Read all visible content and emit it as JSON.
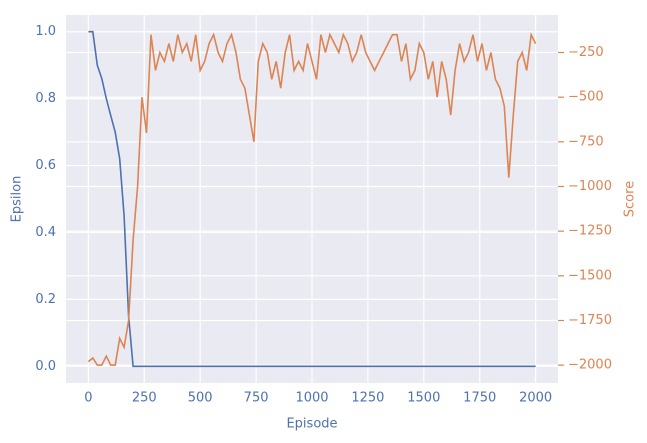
{
  "chart_data": {
    "type": "line",
    "x": [
      0,
      20,
      40,
      60,
      80,
      100,
      120,
      140,
      160,
      180,
      200,
      220,
      240,
      260,
      280,
      300,
      320,
      340,
      360,
      380,
      400,
      420,
      440,
      460,
      480,
      500,
      520,
      540,
      560,
      580,
      600,
      620,
      640,
      660,
      680,
      700,
      720,
      740,
      760,
      780,
      800,
      820,
      840,
      860,
      880,
      900,
      920,
      940,
      960,
      980,
      1000,
      1020,
      1040,
      1060,
      1080,
      1100,
      1120,
      1140,
      1160,
      1180,
      1200,
      1220,
      1240,
      1260,
      1280,
      1300,
      1320,
      1340,
      1360,
      1380,
      1400,
      1420,
      1440,
      1460,
      1480,
      1500,
      1520,
      1540,
      1560,
      1580,
      1600,
      1620,
      1640,
      1660,
      1680,
      1700,
      1720,
      1740,
      1760,
      1780,
      1800,
      1820,
      1840,
      1860,
      1880,
      1900,
      1920,
      1940,
      1960,
      1980,
      2000
    ],
    "series": [
      {
        "name": "Epsilon",
        "color": "#4c72b0",
        "axis": "y",
        "values": [
          1.0,
          1.0,
          0.9,
          0.86,
          0.8,
          0.75,
          0.7,
          0.62,
          0.45,
          0.15,
          0,
          0,
          0,
          0,
          0,
          0,
          0,
          0,
          0,
          0,
          0,
          0,
          0,
          0,
          0,
          0,
          0,
          0,
          0,
          0,
          0,
          0,
          0,
          0,
          0,
          0,
          0,
          0,
          0,
          0,
          0,
          0,
          0,
          0,
          0,
          0,
          0,
          0,
          0,
          0,
          0,
          0,
          0,
          0,
          0,
          0,
          0,
          0,
          0,
          0,
          0,
          0,
          0,
          0,
          0,
          0,
          0,
          0,
          0,
          0,
          0,
          0,
          0,
          0,
          0,
          0,
          0,
          0,
          0,
          0,
          0,
          0,
          0,
          0,
          0,
          0,
          0,
          0,
          0,
          0,
          0,
          0,
          0,
          0,
          0,
          0,
          0,
          0,
          0,
          0,
          0
        ]
      },
      {
        "name": "Score",
        "color": "#dd8452",
        "axis": "y2",
        "values": [
          -1980,
          -1960,
          -2000,
          -2000,
          -1950,
          -2000,
          -2000,
          -1850,
          -1900,
          -1750,
          -1300,
          -1000,
          -500,
          -700,
          -150,
          -350,
          -250,
          -300,
          -200,
          -300,
          -150,
          -250,
          -200,
          -300,
          -150,
          -350,
          -300,
          -200,
          -150,
          -250,
          -300,
          -200,
          -150,
          -250,
          -400,
          -450,
          -600,
          -750,
          -300,
          -200,
          -250,
          -400,
          -300,
          -450,
          -250,
          -150,
          -350,
          -300,
          -350,
          -200,
          -300,
          -400,
          -150,
          -250,
          -150,
          -200,
          -250,
          -150,
          -200,
          -300,
          -250,
          -150,
          -250,
          -300,
          -350,
          -300,
          -250,
          -200,
          -150,
          -150,
          -300,
          -200,
          -400,
          -350,
          -200,
          -250,
          -400,
          -300,
          -500,
          -300,
          -400,
          -600,
          -350,
          -200,
          -300,
          -250,
          -150,
          -300,
          -200,
          -350,
          -250,
          -400,
          -450,
          -550,
          -950,
          -600,
          -300,
          -250,
          -350,
          -150,
          -200
        ]
      }
    ],
    "x_label": "Episode",
    "y_label": "Epsilon",
    "y2_label": "Score",
    "xlim": [
      -100,
      2100
    ],
    "xticks": [
      0,
      250,
      500,
      750,
      1000,
      1250,
      1500,
      1750,
      2000
    ],
    "ylim": [
      -0.05,
      1.05
    ],
    "yticks": [
      {
        "value": 0,
        "label": "0.0"
      },
      0.2,
      0.4,
      0.6,
      0.8,
      {
        "value": 1,
        "label": "1.0"
      }
    ],
    "y2lim": [
      -2100,
      -40
    ],
    "y2ticks": [
      {
        "value": -2000,
        "label": "−2000"
      },
      {
        "value": -1750,
        "label": "−1750"
      },
      {
        "value": -1500,
        "label": "−1500"
      },
      {
        "value": -1250,
        "label": "−1250"
      },
      {
        "value": -1000,
        "label": "−1000"
      },
      {
        "value": -750,
        "label": "−750"
      },
      {
        "value": -500,
        "label": "−500"
      },
      {
        "value": -250,
        "label": "−250"
      }
    ],
    "grid": true
  }
}
